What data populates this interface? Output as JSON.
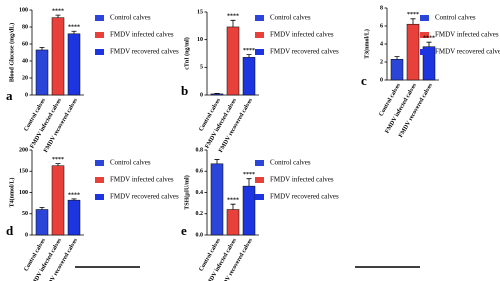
{
  "chart_data": [
    {
      "type": "bar",
      "label": "a",
      "ylabel": "Blood Glucose (mg/dL)",
      "categories": [
        "Control calves",
        "FMDV infected calves",
        "FMDV recovered calves"
      ],
      "values": [
        53,
        91,
        72
      ],
      "errors": [
        3,
        3,
        3
      ],
      "annotations": [
        null,
        "****",
        "****"
      ],
      "colors": [
        "#2a45d8",
        "#e8403a",
        "#1c35e0"
      ],
      "ylim": [
        0,
        100
      ],
      "yticks": [
        0,
        20,
        40,
        60,
        80,
        100
      ]
    },
    {
      "type": "bar",
      "label": "b",
      "ylabel": "cTnI (ng/ml)",
      "categories": [
        "Control calves",
        "FMDV infected calves",
        "FMDV recovered calves"
      ],
      "values": [
        0.2,
        12.3,
        6.8
      ],
      "errors": [
        0.1,
        1.2,
        0.5
      ],
      "annotations": [
        null,
        "****",
        "****"
      ],
      "colors": [
        "#2a45d8",
        "#e8403a",
        "#1c35e0"
      ],
      "ylim": [
        0,
        15
      ],
      "yticks": [
        0,
        5,
        10,
        15
      ]
    },
    {
      "type": "bar",
      "label": "c",
      "ylabel": "T3(nmol/L)",
      "categories": [
        "Control calves",
        "FMDV infected calves",
        "FMDV recovered calves"
      ],
      "values": [
        2.3,
        6.2,
        3.7
      ],
      "errors": [
        0.3,
        0.6,
        0.5
      ],
      "annotations": [
        null,
        "****",
        "****"
      ],
      "colors": [
        "#2a45d8",
        "#e8403a",
        "#1c35e0"
      ],
      "ylim": [
        0,
        8
      ],
      "yticks": [
        0,
        2,
        4,
        6,
        8
      ]
    },
    {
      "type": "bar",
      "label": "d",
      "ylabel": "T4(nmol/L)",
      "categories": [
        "Control calves",
        "FMDV infected calves",
        "FMDV recovered calves"
      ],
      "values": [
        60,
        163,
        82
      ],
      "errors": [
        5,
        5,
        3
      ],
      "annotations": [
        null,
        "****",
        "****"
      ],
      "colors": [
        "#2a45d8",
        "#e8403a",
        "#1c35e0"
      ],
      "ylim": [
        0,
        200
      ],
      "yticks": [
        0,
        50,
        100,
        150,
        200
      ]
    },
    {
      "type": "bar",
      "label": "e",
      "ylabel": "TSH(µIU/ml)",
      "categories": [
        "Control calves",
        "FMDV infected calves",
        "FMDV recovered calves"
      ],
      "values": [
        0.67,
        0.24,
        0.46
      ],
      "errors": [
        0.04,
        0.05,
        0.07
      ],
      "annotations": [
        null,
        "****",
        "****"
      ],
      "colors": [
        "#2a45d8",
        "#e8403a",
        "#1c35e0"
      ],
      "ylim": [
        0,
        0.8
      ],
      "yticks": [
        {
          "value": 0,
          "label": "0.0"
        },
        0.2,
        0.4,
        0.6,
        0.8
      ]
    }
  ]
}
